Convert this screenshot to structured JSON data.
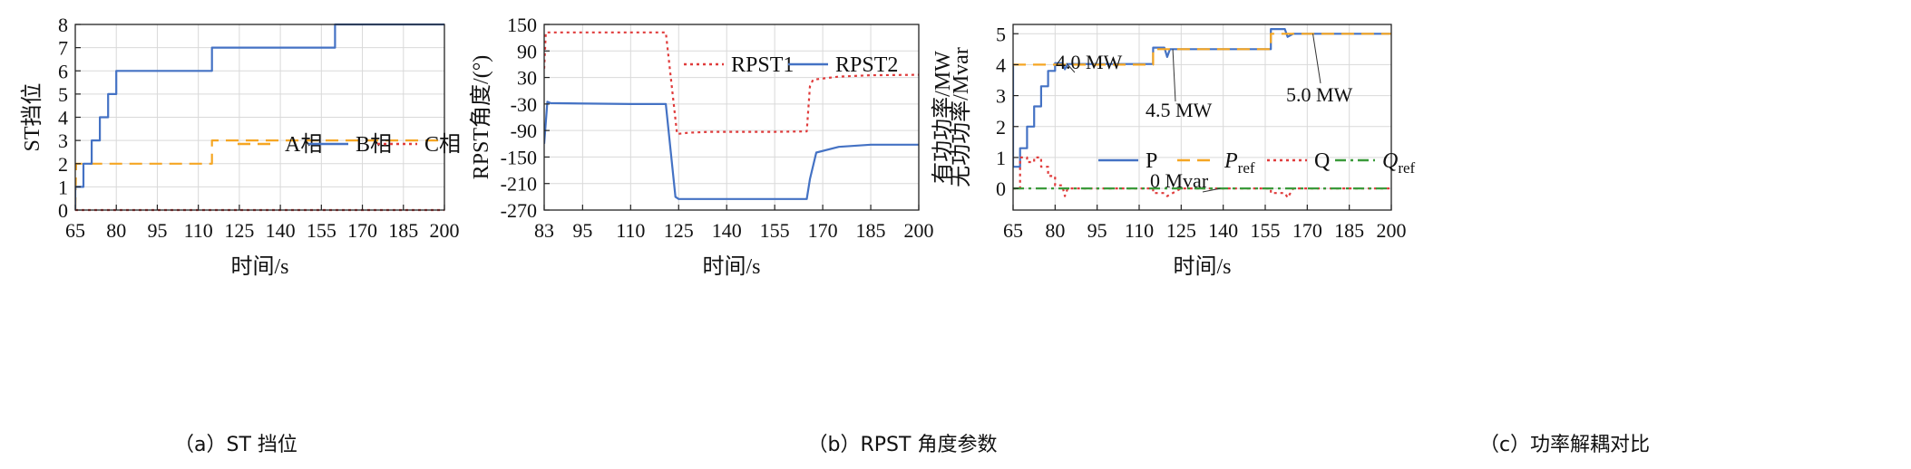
{
  "captions": {
    "a": "（a）ST 挡位",
    "b": "（b）RPST 角度参数",
    "c": "（c）功率解耦对比"
  },
  "chart_data": [
    {
      "type": "line",
      "id": "a",
      "xlabel": "时间/s",
      "ylabel": "ST挡位",
      "xlim": [
        65,
        200
      ],
      "ylim": [
        0,
        8
      ],
      "xticks": [
        65,
        80,
        95,
        110,
        125,
        140,
        155,
        170,
        185,
        200
      ],
      "yticks": [
        0,
        1,
        2,
        3,
        4,
        5,
        6,
        7,
        8
      ],
      "legend_position": "center-right",
      "series": [
        {
          "name": "A相",
          "color": "#f5a623",
          "dash": "dashed",
          "x": [
            65,
            65.3,
            68,
            115,
            115,
            200
          ],
          "y": [
            0,
            2,
            2,
            2,
            3,
            3
          ]
        },
        {
          "name": "B相",
          "color": "#4472c4",
          "dash": "solid",
          "x": [
            65,
            65,
            68,
            68,
            71,
            71,
            74,
            74,
            77,
            77,
            80,
            80,
            115,
            115,
            160,
            160,
            200
          ],
          "y": [
            0,
            1,
            1,
            2,
            2,
            3,
            3,
            4,
            4,
            5,
            5,
            6,
            6,
            7,
            7,
            8,
            8
          ]
        },
        {
          "name": "C相",
          "color": "#e03c3c",
          "dash": "dotted",
          "x": [
            65,
            200
          ],
          "y": [
            0,
            0
          ]
        }
      ]
    },
    {
      "type": "line",
      "id": "b",
      "xlabel": "时间/s",
      "ylabel": "RPST角度/(°)",
      "xlim": [
        83,
        200
      ],
      "ylim": [
        -270,
        150
      ],
      "xticks": [
        83,
        95,
        110,
        125,
        140,
        155,
        170,
        185,
        200
      ],
      "yticks": [
        -270,
        -210,
        -150,
        -90,
        -30,
        30,
        90,
        150
      ],
      "legend_position": "top-right",
      "series": [
        {
          "name": "RPST1",
          "color": "#e03c3c",
          "dash": "dotted",
          "x": [
            83,
            83.5,
            84.5,
            110,
            121,
            124.5,
            128,
            135,
            145,
            155,
            165,
            166,
            167,
            175,
            185,
            200
          ],
          "y": [
            50,
            132,
            132,
            132,
            132,
            -98,
            -95,
            -93,
            -93,
            -93,
            -92,
            10,
            25,
            32,
            35,
            36
          ]
        },
        {
          "name": "RPST2",
          "color": "#4472c4",
          "dash": "solid",
          "x": [
            83,
            84,
            85,
            110,
            121,
            124,
            125,
            140,
            160,
            165,
            166,
            168,
            175,
            185,
            200
          ],
          "y": [
            -120,
            -25,
            -28,
            -30,
            -30,
            -240,
            -245,
            -245,
            -245,
            -245,
            -200,
            -140,
            -127,
            -122,
            -122
          ]
        }
      ]
    },
    {
      "type": "line",
      "id": "c",
      "xlabel": "时间/s",
      "ylabel": [
        "有功功率/MW",
        "无功功率/Mvar"
      ],
      "xlim": [
        65,
        200
      ],
      "ylim": [
        -0.7,
        5.3
      ],
      "xticks": [
        65,
        80,
        95,
        110,
        125,
        140,
        155,
        170,
        185,
        200
      ],
      "yticks": [
        0,
        1,
        2,
        3,
        4,
        5
      ],
      "legend_position": "center-right",
      "annotations": [
        "4.0 MW",
        "4.5 MW",
        "5.0 MW",
        "0 Mvar"
      ],
      "series": [
        {
          "name": "P",
          "color": "#4472c4",
          "dash": "solid",
          "x": [
            65,
            65,
            67.5,
            67.5,
            70,
            70,
            72.5,
            72.5,
            75,
            75,
            77.5,
            77.5,
            80,
            80,
            82.5,
            83.5,
            84.5,
            115,
            115,
            119,
            120,
            121,
            157,
            157,
            162,
            163,
            165,
            200
          ],
          "y": [
            4.0,
            0.7,
            0.7,
            1.3,
            1.3,
            2.0,
            2.0,
            2.65,
            2.65,
            3.3,
            3.3,
            3.8,
            3.8,
            4.05,
            4.05,
            3.85,
            4.02,
            4.02,
            4.55,
            4.55,
            4.25,
            4.5,
            4.5,
            5.15,
            5.15,
            4.9,
            5.0,
            5.0
          ]
        },
        {
          "name": "Pref",
          "color": "#f5a623",
          "dash": "dashed",
          "x": [
            65,
            115,
            115,
            157,
            157,
            200
          ],
          "y": [
            4.0,
            4.0,
            4.5,
            4.5,
            5.0,
            5.0
          ]
        },
        {
          "name": "Q",
          "color": "#e03c3c",
          "dash": "dotted",
          "x": [
            65,
            67.5,
            67.5,
            70,
            70,
            72.5,
            72.5,
            75,
            75,
            77.5,
            77.5,
            80,
            80,
            82.5,
            83.5,
            84.5,
            100,
            115,
            115,
            119,
            120,
            125,
            157,
            157,
            162,
            163,
            165,
            200
          ],
          "y": [
            0.0,
            0.0,
            1.0,
            1.0,
            0.85,
            0.85,
            1.0,
            1.0,
            0.7,
            0.7,
            0.4,
            0.4,
            0.1,
            0.1,
            -0.25,
            0.0,
            0.0,
            0.0,
            -0.15,
            -0.15,
            -0.25,
            0.0,
            0.0,
            -0.15,
            -0.15,
            -0.3,
            0.0,
            0.0
          ]
        },
        {
          "name": "Qref",
          "color": "#3a9a3a",
          "dash": "dashdot",
          "x": [
            65,
            200
          ],
          "y": [
            0,
            0
          ]
        }
      ]
    }
  ]
}
